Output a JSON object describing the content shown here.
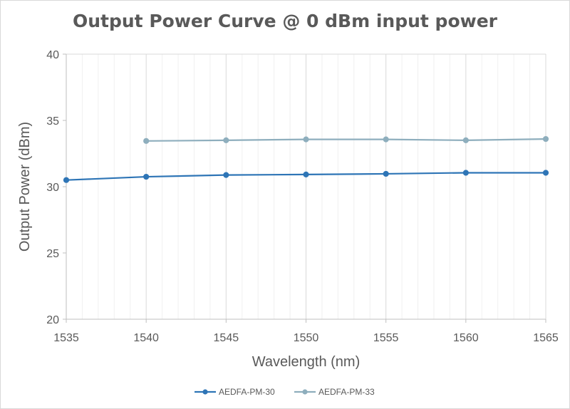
{
  "chart_data": {
    "type": "line",
    "title": "Output Power Curve @ 0 dBm input power",
    "xlabel": "Wavelength (nm)",
    "ylabel": "Output Power (dBm)",
    "xlim": [
      1535,
      1565
    ],
    "ylim": [
      20,
      40
    ],
    "x_ticks": [
      1535,
      1540,
      1545,
      1550,
      1555,
      1560,
      1565
    ],
    "y_ticks": [
      20,
      25,
      30,
      35,
      40
    ],
    "grid": "vertical major and minor gridlines",
    "legend_position": "bottom",
    "series": [
      {
        "name": "AEDFA-PM-30",
        "color": "#2e75b6",
        "x": [
          1535,
          1540,
          1545,
          1550,
          1555,
          1560,
          1565
        ],
        "y": [
          30.5,
          30.75,
          30.88,
          30.92,
          30.97,
          31.05,
          31.05
        ]
      },
      {
        "name": "AEDFA-PM-33",
        "color": "#8eaebd",
        "x": [
          1540,
          1545,
          1550,
          1555,
          1560,
          1565
        ],
        "y": [
          33.45,
          33.5,
          33.57,
          33.57,
          33.5,
          33.6
        ]
      }
    ]
  }
}
